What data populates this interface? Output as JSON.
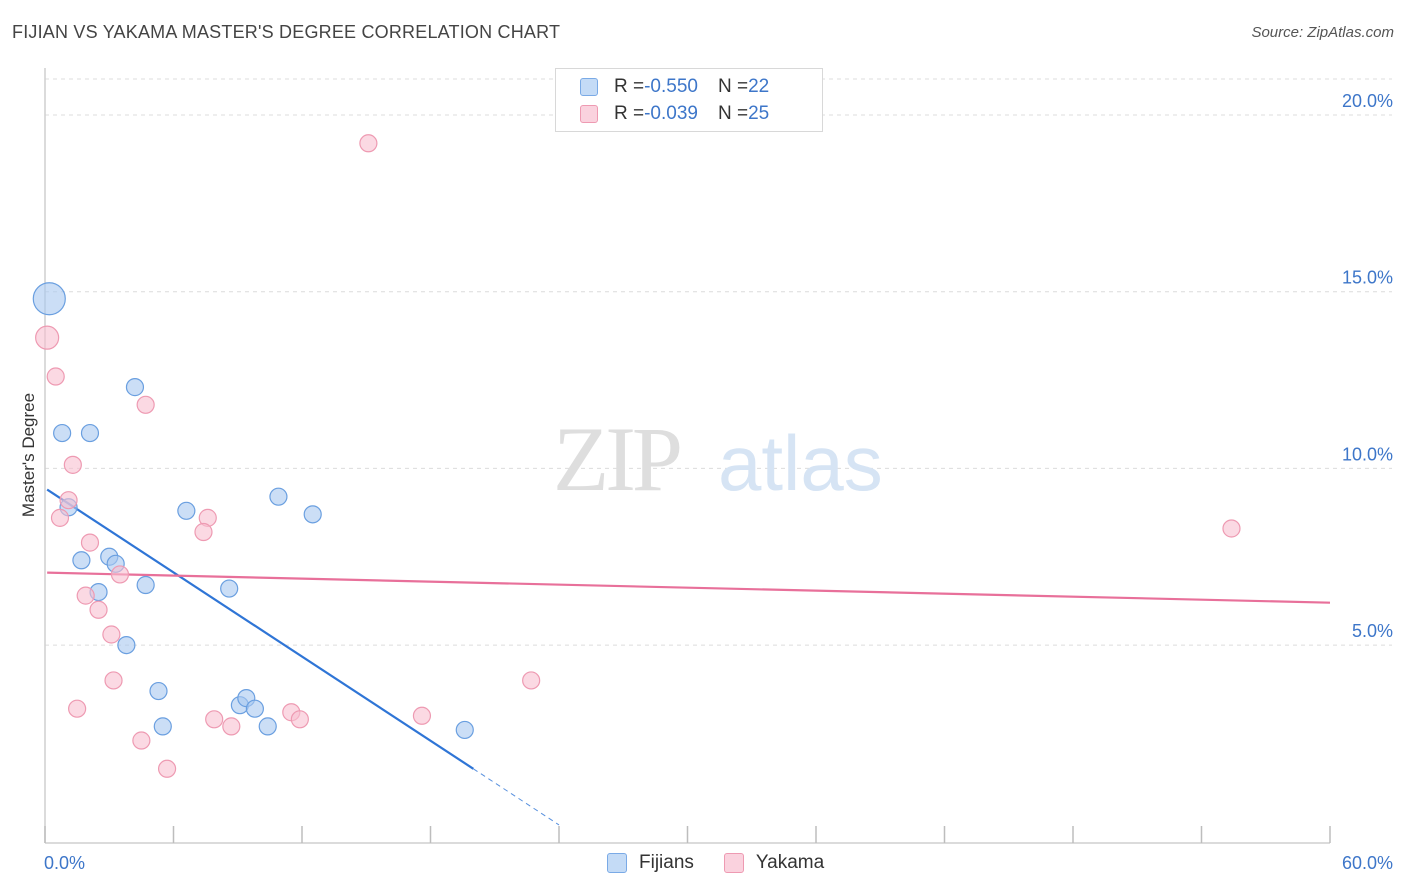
{
  "header": {
    "title": "FIJIAN VS YAKAMA MASTER'S DEGREE CORRELATION CHART",
    "source": "Source: ZipAtlas.com"
  },
  "watermark": {
    "zip": "ZIP",
    "atlas": "atlas"
  },
  "legend": {
    "rows": [
      {
        "r_label": "R = ",
        "r_value": "-0.550",
        "n_label": "N = ",
        "n_value": "22",
        "color": "#a8c8f0",
        "border": "#7aaae6"
      },
      {
        "r_label": "R = ",
        "r_value": "-0.039",
        "n_label": "N = ",
        "n_value": "25",
        "color": "#f8c0d0",
        "border": "#ee9ab2"
      }
    ]
  },
  "bottom_legend": {
    "fijians": "Fijians",
    "yakama": "Yakama"
  },
  "chart_data": {
    "type": "scatter",
    "title": "FIJIAN VS YAKAMA MASTER'S DEGREE CORRELATION CHART",
    "xlabel": "",
    "ylabel": "Master's Degree",
    "xlim": [
      0,
      60
    ],
    "ylim": [
      -0.6,
      21.5
    ],
    "x_tick_labels": [
      "0.0%",
      "60.0%"
    ],
    "y_ticks": [
      5,
      10,
      15,
      20
    ],
    "y_tick_labels": [
      "5.0%",
      "10.0%",
      "15.0%",
      "20.0%"
    ],
    "grid": true,
    "series": [
      {
        "name": "Fijians",
        "color": "#a8c8f0",
        "stroke": "#6a9fe0",
        "line_color": "#2f75d6",
        "trend": {
          "x0": 0.1,
          "y0": 9.4,
          "x1": 20.0,
          "y1": 1.5,
          "dash_to_x": 24.0
        },
        "points": [
          {
            "x": 0.2,
            "y": 14.8,
            "size": 3
          },
          {
            "x": 0.8,
            "y": 11.0,
            "size": 1
          },
          {
            "x": 2.1,
            "y": 11.0,
            "size": 1
          },
          {
            "x": 4.2,
            "y": 12.3,
            "size": 1
          },
          {
            "x": 1.1,
            "y": 8.9,
            "size": 1
          },
          {
            "x": 1.7,
            "y": 7.4,
            "size": 1
          },
          {
            "x": 3.0,
            "y": 7.5,
            "size": 1
          },
          {
            "x": 3.3,
            "y": 7.3,
            "size": 1
          },
          {
            "x": 2.5,
            "y": 6.5,
            "size": 1
          },
          {
            "x": 4.7,
            "y": 6.7,
            "size": 1
          },
          {
            "x": 3.8,
            "y": 5.0,
            "size": 1
          },
          {
            "x": 6.6,
            "y": 8.8,
            "size": 1
          },
          {
            "x": 8.6,
            "y": 6.6,
            "size": 1
          },
          {
            "x": 10.9,
            "y": 9.2,
            "size": 1
          },
          {
            "x": 12.5,
            "y": 8.7,
            "size": 1
          },
          {
            "x": 5.3,
            "y": 3.7,
            "size": 1
          },
          {
            "x": 5.5,
            "y": 2.7,
            "size": 1
          },
          {
            "x": 9.1,
            "y": 3.3,
            "size": 1
          },
          {
            "x": 9.4,
            "y": 3.5,
            "size": 1
          },
          {
            "x": 9.8,
            "y": 3.2,
            "size": 1
          },
          {
            "x": 10.4,
            "y": 2.7,
            "size": 1
          },
          {
            "x": 19.6,
            "y": 2.6,
            "size": 1
          }
        ]
      },
      {
        "name": "Yakama",
        "color": "#f8c0d0",
        "stroke": "#ee9ab2",
        "line_color": "#e8709a",
        "trend": {
          "x0": 0.1,
          "y0": 7.05,
          "x1": 60.0,
          "y1": 6.2
        },
        "points": [
          {
            "x": 0.1,
            "y": 13.7,
            "size": 2
          },
          {
            "x": 0.5,
            "y": 12.6,
            "size": 1
          },
          {
            "x": 4.7,
            "y": 11.8,
            "size": 1
          },
          {
            "x": 1.3,
            "y": 10.1,
            "size": 1
          },
          {
            "x": 1.1,
            "y": 9.1,
            "size": 1
          },
          {
            "x": 0.7,
            "y": 8.6,
            "size": 1
          },
          {
            "x": 7.6,
            "y": 8.6,
            "size": 1
          },
          {
            "x": 7.4,
            "y": 8.2,
            "size": 1
          },
          {
            "x": 2.1,
            "y": 7.9,
            "size": 1
          },
          {
            "x": 3.5,
            "y": 7.0,
            "size": 1
          },
          {
            "x": 1.9,
            "y": 6.4,
            "size": 1
          },
          {
            "x": 2.5,
            "y": 6.0,
            "size": 1
          },
          {
            "x": 3.1,
            "y": 5.3,
            "size": 1
          },
          {
            "x": 3.2,
            "y": 4.0,
            "size": 1
          },
          {
            "x": 1.5,
            "y": 3.2,
            "size": 1
          },
          {
            "x": 4.5,
            "y": 2.3,
            "size": 1
          },
          {
            "x": 5.7,
            "y": 1.5,
            "size": 1
          },
          {
            "x": 7.9,
            "y": 2.9,
            "size": 1
          },
          {
            "x": 8.7,
            "y": 2.7,
            "size": 1
          },
          {
            "x": 11.5,
            "y": 3.1,
            "size": 1
          },
          {
            "x": 11.9,
            "y": 2.9,
            "size": 1
          },
          {
            "x": 15.1,
            "y": 19.2,
            "size": 1
          },
          {
            "x": 17.6,
            "y": 3.0,
            "size": 1
          },
          {
            "x": 22.7,
            "y": 4.0,
            "size": 1
          },
          {
            "x": 55.4,
            "y": 8.3,
            "size": 1
          }
        ]
      }
    ]
  }
}
